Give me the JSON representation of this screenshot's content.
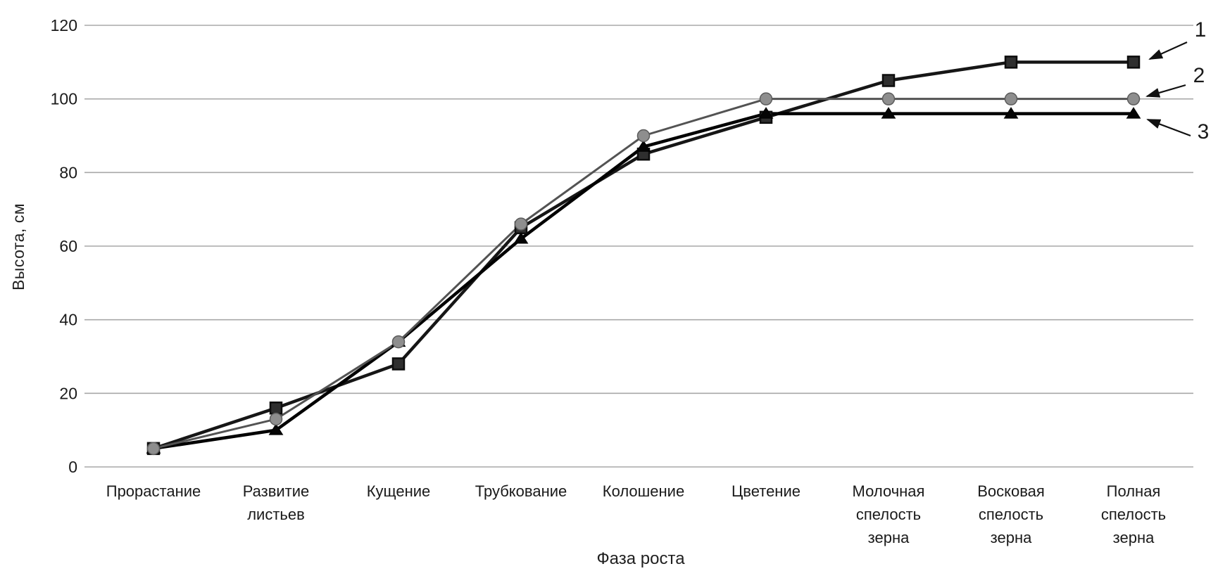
{
  "chart_data": {
    "type": "line",
    "title": "",
    "xlabel": "Фаза роста",
    "ylabel": "Высота, см",
    "ylim": [
      0,
      120
    ],
    "ytick_step": 20,
    "yticks": [
      0,
      20,
      40,
      60,
      80,
      100,
      120
    ],
    "grid": "horizontal",
    "legend_position": "right-callouts",
    "categories": [
      "Прорастание",
      "Развитие листьев",
      "Кущение",
      "Трубкование",
      "Колошение",
      "Цветение",
      "Молочная спелость зерна",
      "Восковая спелость зерна",
      "Полная спелость зерна"
    ],
    "categories_wrapped": [
      [
        "Прорастание"
      ],
      [
        "Развитие",
        "листьев"
      ],
      [
        "Кущение"
      ],
      [
        "Трубкование"
      ],
      [
        "Колошение"
      ],
      [
        "Цветение"
      ],
      [
        "Молочная",
        "спелость",
        "зерна"
      ],
      [
        "Восковая",
        "спелость",
        "зерна"
      ],
      [
        "Полная",
        "спелость",
        "зерна"
      ]
    ],
    "series": [
      {
        "name": "1",
        "marker": "square",
        "line_color": "#161616",
        "marker_fill": "#2f2f2f",
        "marker_stroke": "#0d0d0d",
        "values": [
          5,
          16,
          28,
          65,
          85,
          95,
          105,
          110,
          110
        ]
      },
      {
        "name": "2",
        "marker": "circle",
        "line_color": "#535353",
        "marker_fill": "#8e8e8e",
        "marker_stroke": "#5c5c5c",
        "values": [
          5,
          13,
          34,
          66,
          90,
          100,
          100,
          100,
          100
        ]
      },
      {
        "name": "3",
        "marker": "triangle",
        "line_color": "#000000",
        "marker_fill": "#050505",
        "marker_stroke": "#000000",
        "values": [
          5,
          10,
          34,
          62,
          87,
          96,
          96,
          96,
          96
        ]
      }
    ],
    "annotations": [
      {
        "label": "1",
        "series_index": 0
      },
      {
        "label": "2",
        "series_index": 1
      },
      {
        "label": "3",
        "series_index": 2
      }
    ]
  },
  "colors": {
    "background": "#ffffff",
    "gridline": "#a8a8a8",
    "text": "#1a1a1a",
    "callout_arrow": "#111111"
  }
}
